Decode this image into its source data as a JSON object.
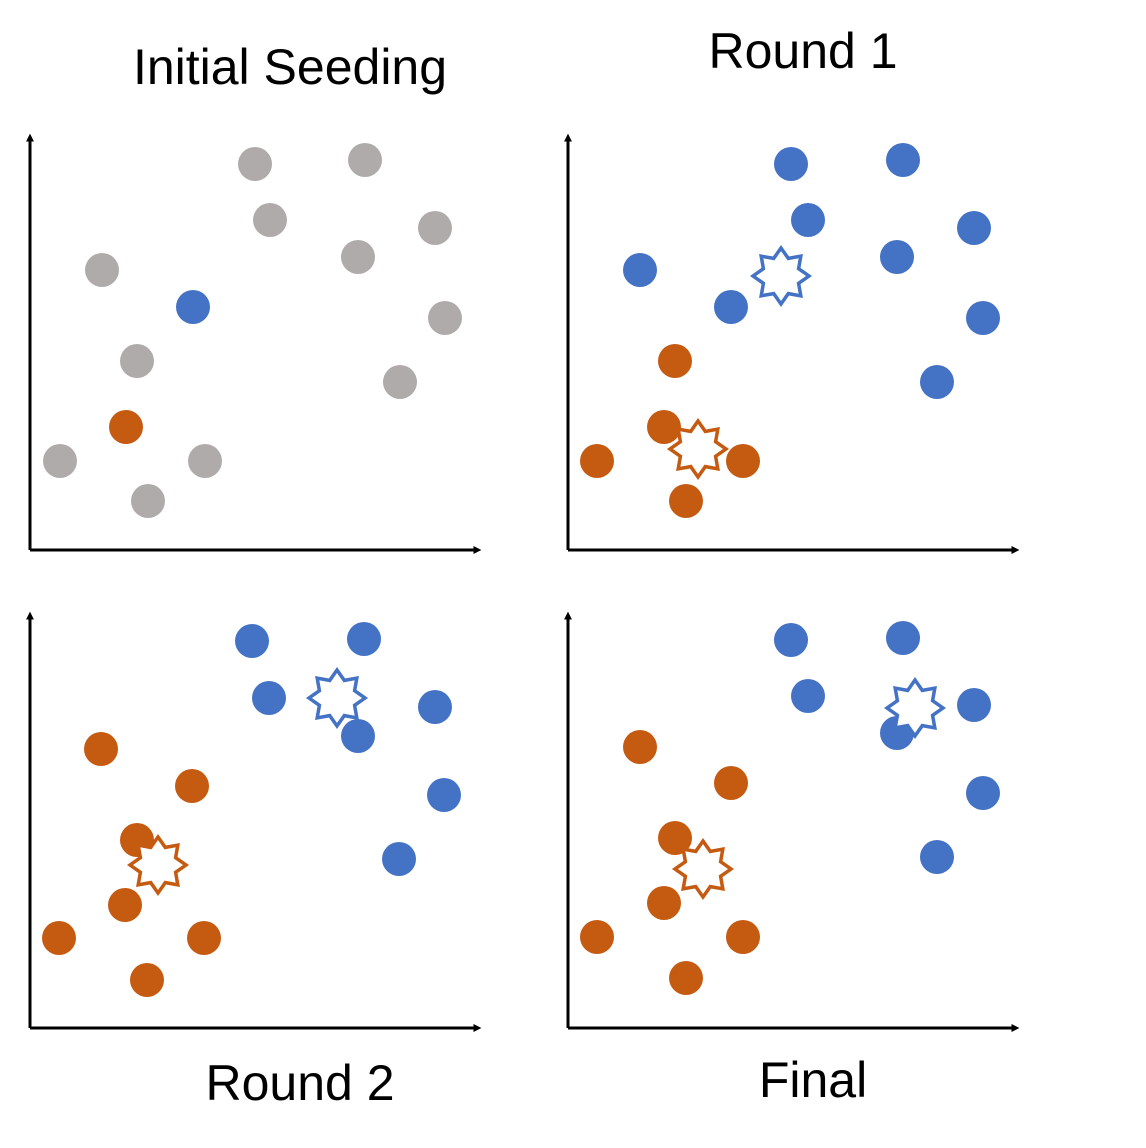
{
  "panels": [
    {
      "title": "Initial Seeding"
    },
    {
      "title": "Round 1"
    },
    {
      "title": "Round 2"
    },
    {
      "title": "Final"
    }
  ]
}
